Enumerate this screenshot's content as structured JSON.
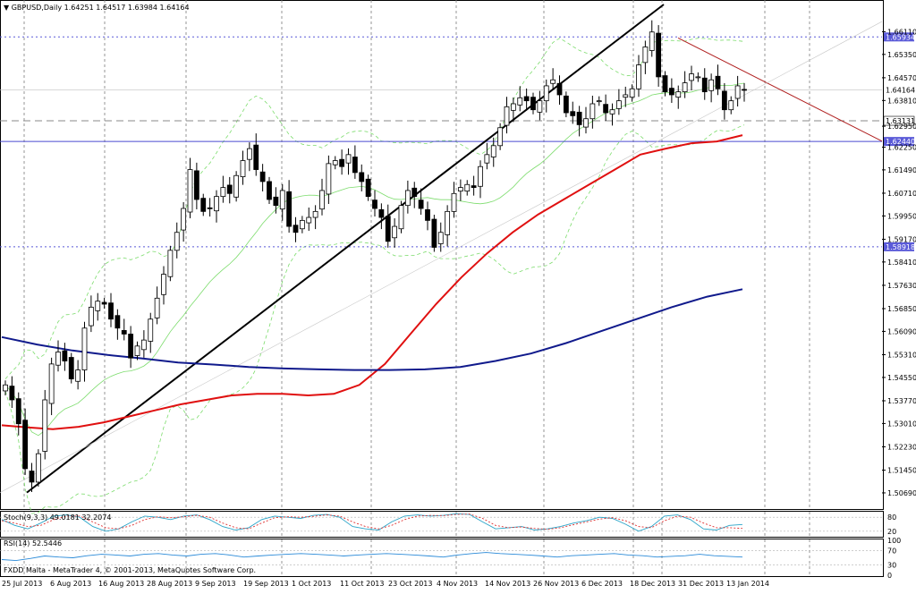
{
  "window": {
    "symbol_header": "▼ GBPUSD,Daily  1.64251 1.64517 1.63984 1.64164",
    "copyright": "FXDD Malta - MetaTrader 4, © 2001-2013, MetaQuotes Software Corp."
  },
  "colors": {
    "background": "#ffffff",
    "grid": "#7a7a7a",
    "candle_outline": "#000000",
    "candle_bull_fill": "#ffffff",
    "candle_bear_fill": "#000000",
    "bollinger": "#7cdc6c",
    "ma_fast": "#e01010",
    "ma_slow": "#101a8c",
    "trendline_up": "#000000",
    "trendline_down": "#b02020",
    "hline_solid": "#4a4ad0",
    "hline_dashed_gray": "#8a8a8a",
    "hline_dotted_blue": "#5a5ad8",
    "stoch_main": "#2aa4c8",
    "stoch_signal": "#e03030",
    "rsi": "#2a8ad8",
    "label_box": "#5a5ad8"
  },
  "chart_data": [
    {
      "type": "candlestick",
      "title": "GBPUSD,Daily",
      "ohlc_header": {
        "open": 1.64251,
        "high": 1.64517,
        "low": 1.63984,
        "close": 1.64164
      },
      "ylim": [
        1.503,
        1.6705
      ],
      "y_ticks": [
        "1.66110",
        "1.65350",
        "1.64570",
        "1.63810",
        "1.62950",
        "1.62250",
        "1.61490",
        "1.60710",
        "1.59950",
        "1.59170",
        "1.58410",
        "1.57630",
        "1.56850",
        "1.56090",
        "1.55310",
        "1.54550",
        "1.53770",
        "1.53010",
        "1.52230",
        "1.51450",
        "1.50690"
      ],
      "x_ticks": [
        "25 Jul 2013",
        "6 Aug 2013",
        "16 Aug 2013",
        "28 Aug 2013",
        "9 Sep 2013",
        "19 Sep 2013",
        "1 Oct 2013",
        "11 Oct 2013",
        "23 Oct 2013",
        "4 Nov 2013",
        "14 Nov 2013",
        "26 Nov 2013",
        "6 Dec 2013",
        "18 Dec 2013",
        "31 Dec 2013",
        "13 Jan 2014"
      ],
      "price_labels": [
        {
          "text": "1.65934",
          "value": 1.65934,
          "style": "dotted"
        },
        {
          "text": "1.64164",
          "value": 1.64164,
          "style": "current"
        },
        {
          "text": "1.63131",
          "value": 1.63131,
          "style": "dashed"
        },
        {
          "text": "1.62440",
          "value": 1.6244,
          "style": "solid"
        },
        {
          "text": "1.58918",
          "value": 1.58918,
          "style": "dotted"
        }
      ],
      "closes": [
        1.543,
        1.538,
        1.53,
        1.515,
        1.5105,
        1.52,
        1.538,
        1.55,
        1.554,
        1.551,
        1.545,
        1.548,
        1.562,
        1.569,
        1.571,
        1.57,
        1.565,
        1.562,
        1.56,
        1.552,
        1.556,
        1.558,
        1.565,
        1.572,
        1.58,
        1.588,
        1.594,
        1.602,
        1.615,
        1.605,
        1.601,
        1.602,
        1.606,
        1.609,
        1.607,
        1.613,
        1.618,
        1.622,
        1.615,
        1.611,
        1.605,
        1.603,
        1.608,
        1.596,
        1.594,
        1.598,
        1.599,
        1.601,
        1.608,
        1.617,
        1.618,
        1.616,
        1.62,
        1.614,
        1.611,
        1.606,
        1.602,
        1.599,
        1.591,
        1.596,
        1.603,
        1.608,
        1.606,
        1.602,
        1.598,
        1.589,
        1.594,
        1.601,
        1.607,
        1.609,
        1.61,
        1.609,
        1.616,
        1.62,
        1.623,
        1.629,
        1.636,
        1.637,
        1.639,
        1.638,
        1.635,
        1.638,
        1.643,
        1.645,
        1.64,
        1.634,
        1.633,
        1.63,
        1.632,
        1.637,
        1.638,
        1.634,
        1.635,
        1.638,
        1.64,
        1.642,
        1.65,
        1.656,
        1.661,
        1.646,
        1.641,
        1.64,
        1.641,
        1.644,
        1.647,
        1.646,
        1.641,
        1.645,
        1.642,
        1.635,
        1.638,
        1.643,
        1.6416
      ],
      "series": [
        {
          "name": "MA fast",
          "values": [
            1.5295,
            1.5288,
            1.5282,
            1.529,
            1.5305,
            1.5325,
            1.5345,
            1.5365,
            1.538,
            1.5395,
            1.54,
            1.54,
            1.5395,
            1.54,
            1.543,
            1.55,
            1.56,
            1.57,
            1.579,
            1.587,
            1.594,
            1.6,
            1.605,
            1.61,
            1.615,
            1.62,
            1.622,
            1.6238,
            1.6244,
            1.6265
          ]
        },
        {
          "name": "MA slow",
          "values": [
            1.559,
            1.5565,
            1.5545,
            1.553,
            1.5518,
            1.5505,
            1.5498,
            1.549,
            1.5485,
            1.5482,
            1.548,
            1.548,
            1.5482,
            1.549,
            1.551,
            1.5535,
            1.557,
            1.561,
            1.565,
            1.569,
            1.5725,
            1.575
          ]
        }
      ],
      "trendlines": [
        {
          "name": "support",
          "from": [
            1.51
          ],
          "to": [
            1.67
          ]
        },
        {
          "name": "resistance",
          "from": [
            1.656
          ],
          "to": [
            1.628
          ]
        }
      ]
    },
    {
      "type": "line",
      "title": "Stoch(9,3,3) 49.0181 32.2074",
      "ylim": [
        0,
        100
      ],
      "y_ticks": [
        "80",
        "20"
      ],
      "series": [
        {
          "name": "main",
          "values": [
            70,
            45,
            30,
            55,
            85,
            90,
            80,
            40,
            20,
            30,
            60,
            85,
            80,
            70,
            85,
            90,
            70,
            40,
            25,
            35,
            70,
            85,
            80,
            75,
            88,
            92,
            80,
            40,
            30,
            25,
            60,
            85,
            90,
            85,
            88,
            95,
            92,
            60,
            30,
            35,
            40,
            25,
            30,
            40,
            55,
            65,
            80,
            75,
            50,
            20,
            40,
            85,
            90,
            70,
            30,
            25,
            45,
            49
          ]
        },
        {
          "name": "signal",
          "values": [
            65,
            55,
            40,
            45,
            70,
            85,
            85,
            60,
            35,
            30,
            45,
            70,
            82,
            78,
            82,
            88,
            80,
            55,
            35,
            30,
            55,
            78,
            82,
            80,
            84,
            90,
            85,
            60,
            40,
            30,
            45,
            70,
            85,
            88,
            87,
            92,
            94,
            75,
            45,
            35,
            38,
            32,
            28,
            35,
            48,
            60,
            72,
            78,
            65,
            40,
            35,
            65,
            85,
            80,
            55,
            35,
            35,
            32
          ]
        }
      ]
    },
    {
      "type": "line",
      "title": "RSI(14) 52.5446",
      "ylim": [
        0,
        100
      ],
      "y_ticks": [
        "100",
        "70",
        "30",
        "0"
      ],
      "series": [
        {
          "name": "RSI",
          "values": [
            45,
            42,
            48,
            55,
            52,
            50,
            56,
            60,
            58,
            55,
            60,
            62,
            58,
            55,
            60,
            62,
            58,
            52,
            55,
            58,
            60,
            62,
            60,
            58,
            55,
            58,
            60,
            62,
            60,
            58,
            55,
            52,
            58,
            62,
            65,
            62,
            60,
            58,
            55,
            52,
            56,
            58,
            60,
            62,
            58,
            56,
            52,
            54,
            56,
            60,
            56,
            54,
            52
          ]
        }
      ]
    }
  ]
}
